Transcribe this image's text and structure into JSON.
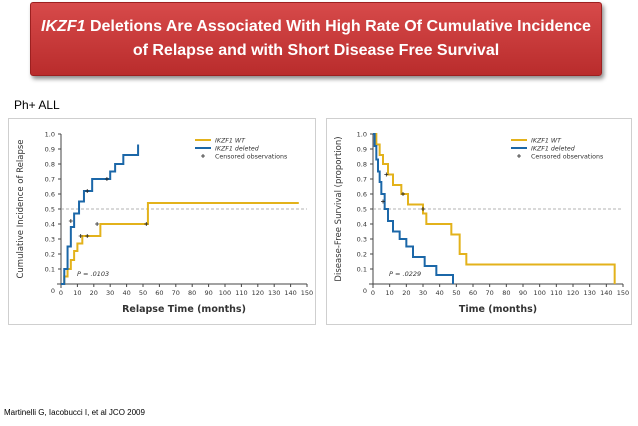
{
  "title": {
    "gene": "IKZF1",
    "line1_rest": " Deletions Are Associated With High Rate Of Cumulative Incidence",
    "line2": "of Relapse and with Short Disease Free Survival"
  },
  "subgroup_label": "Ph+ ALL",
  "citation": "Martinelli G, Iacobucci I, et al JCO 2009",
  "colors": {
    "wt": "#e3b21b",
    "deleted": "#1b67a8",
    "censor": "#222222",
    "axis": "#444444",
    "ref_line": "#9a9a9a"
  },
  "chart_data": [
    {
      "type": "line",
      "title": "",
      "xlabel": "Relapse Time (months)",
      "ylabel": "Cumulative Incidence of Relapse",
      "xlim": [
        0,
        150
      ],
      "ylim": [
        0,
        1.0
      ],
      "xticks": [
        0,
        10,
        20,
        30,
        40,
        50,
        60,
        70,
        80,
        90,
        100,
        110,
        120,
        130,
        140,
        150
      ],
      "yticks": [
        0.1,
        0.2,
        0.3,
        0.4,
        0.5,
        0.6,
        0.7,
        0.8,
        0.9,
        1.0
      ],
      "reference_line": 0.5,
      "legend": [
        "IKZF1 WT",
        "IKZF1 deleted",
        "Censored observations"
      ],
      "legend_position": "top-right",
      "p_value": "P = .0103",
      "series": [
        {
          "name": "IKZF1 WT",
          "color_key": "wt",
          "steps": [
            [
              0,
              0
            ],
            [
              2,
              0.05
            ],
            [
              4,
              0.1
            ],
            [
              6,
              0.16
            ],
            [
              8,
              0.22
            ],
            [
              10,
              0.27
            ],
            [
              13,
              0.32
            ],
            [
              24,
              0.4
            ],
            [
              35,
              0.4
            ],
            [
              53,
              0.54
            ],
            [
              145,
              0.54
            ]
          ]
        },
        {
          "name": "IKZF1 deleted",
          "color_key": "deleted",
          "steps": [
            [
              0,
              0
            ],
            [
              2,
              0.1
            ],
            [
              4,
              0.25
            ],
            [
              6,
              0.38
            ],
            [
              8,
              0.47
            ],
            [
              11,
              0.55
            ],
            [
              14,
              0.62
            ],
            [
              19,
              0.7
            ],
            [
              24,
              0.7
            ],
            [
              30,
              0.75
            ],
            [
              33,
              0.8
            ],
            [
              38,
              0.86
            ],
            [
              47,
              0.93
            ]
          ]
        }
      ],
      "censored": [
        [
          12,
          0.32
        ],
        [
          16,
          0.32
        ],
        [
          22,
          0.4
        ],
        [
          52,
          0.4
        ],
        [
          6,
          0.42
        ],
        [
          16,
          0.62
        ],
        [
          28,
          0.7
        ]
      ]
    },
    {
      "type": "line",
      "title": "",
      "xlabel": "Time (months)",
      "ylabel": "Disease-Free Survival (proportion)",
      "xlim": [
        0,
        150
      ],
      "ylim": [
        0,
        1.0
      ],
      "xticks": [
        0,
        10,
        20,
        30,
        40,
        50,
        60,
        70,
        80,
        90,
        100,
        110,
        120,
        130,
        140,
        150
      ],
      "yticks": [
        0.1,
        0.2,
        0.3,
        0.4,
        0.5,
        0.6,
        0.7,
        0.8,
        0.9,
        1.0
      ],
      "reference_line": 0.5,
      "legend": [
        "IKZF1 WT",
        "IKZF1 deleted",
        "Censored observations"
      ],
      "legend_position": "top-right",
      "p_value": "P = .0229",
      "series": [
        {
          "name": "IKZF1 WT",
          "color_key": "wt",
          "steps": [
            [
              0,
              1.0
            ],
            [
              2,
              0.93
            ],
            [
              4,
              0.86
            ],
            [
              6,
              0.8
            ],
            [
              9,
              0.73
            ],
            [
              12,
              0.66
            ],
            [
              17,
              0.6
            ],
            [
              21,
              0.53
            ],
            [
              30,
              0.47
            ],
            [
              32,
              0.4
            ],
            [
              47,
              0.33
            ],
            [
              52,
              0.2
            ],
            [
              56,
              0.13
            ],
            [
              145,
              0.13
            ],
            [
              145,
              0.0
            ]
          ]
        },
        {
          "name": "IKZF1 deleted",
          "color_key": "deleted",
          "steps": [
            [
              0,
              1.0
            ],
            [
              1,
              0.92
            ],
            [
              2,
              0.83
            ],
            [
              3,
              0.75
            ],
            [
              4,
              0.68
            ],
            [
              5,
              0.6
            ],
            [
              7,
              0.5
            ],
            [
              9,
              0.42
            ],
            [
              12,
              0.35
            ],
            [
              16,
              0.3
            ],
            [
              20,
              0.25
            ],
            [
              24,
              0.18
            ],
            [
              31,
              0.12
            ],
            [
              38,
              0.06
            ],
            [
              48,
              0.0
            ]
          ]
        }
      ],
      "censored": [
        [
          8,
          0.73
        ],
        [
          18,
          0.6
        ],
        [
          30,
          0.5
        ],
        [
          6,
          0.55
        ]
      ]
    }
  ]
}
